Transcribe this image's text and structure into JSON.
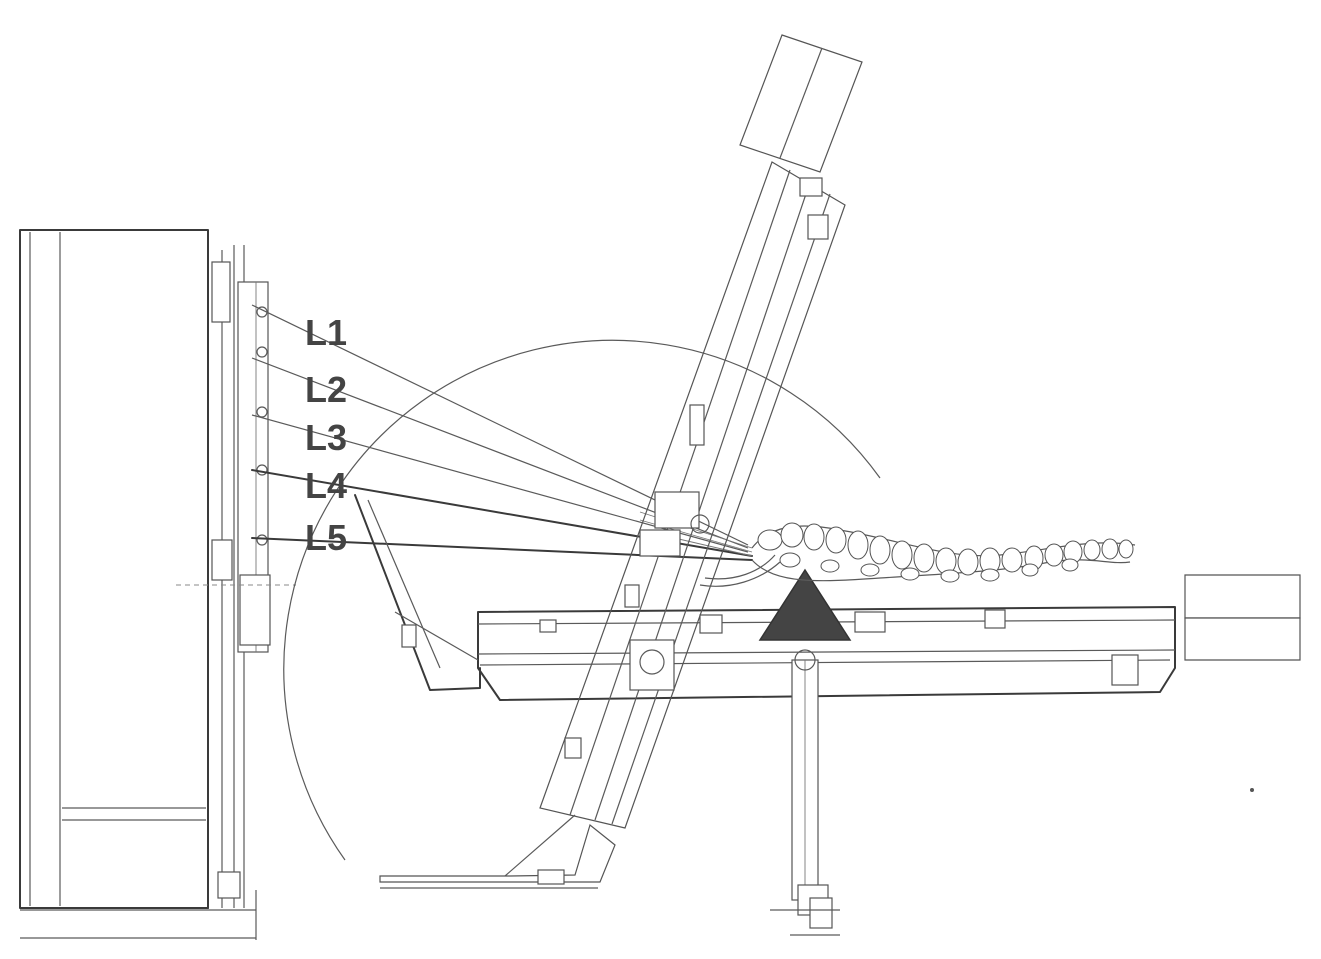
{
  "figure": {
    "labels": [
      {
        "id": "L1",
        "text": "L1"
      },
      {
        "id": "L2",
        "text": "L2"
      },
      {
        "id": "L3",
        "text": "L3"
      },
      {
        "id": "L4",
        "text": "L4"
      },
      {
        "id": "L5",
        "text": "L5"
      }
    ],
    "colors": {
      "line": "#3a3a3a",
      "fulcrum": "#444444",
      "background": "#ffffff"
    }
  }
}
